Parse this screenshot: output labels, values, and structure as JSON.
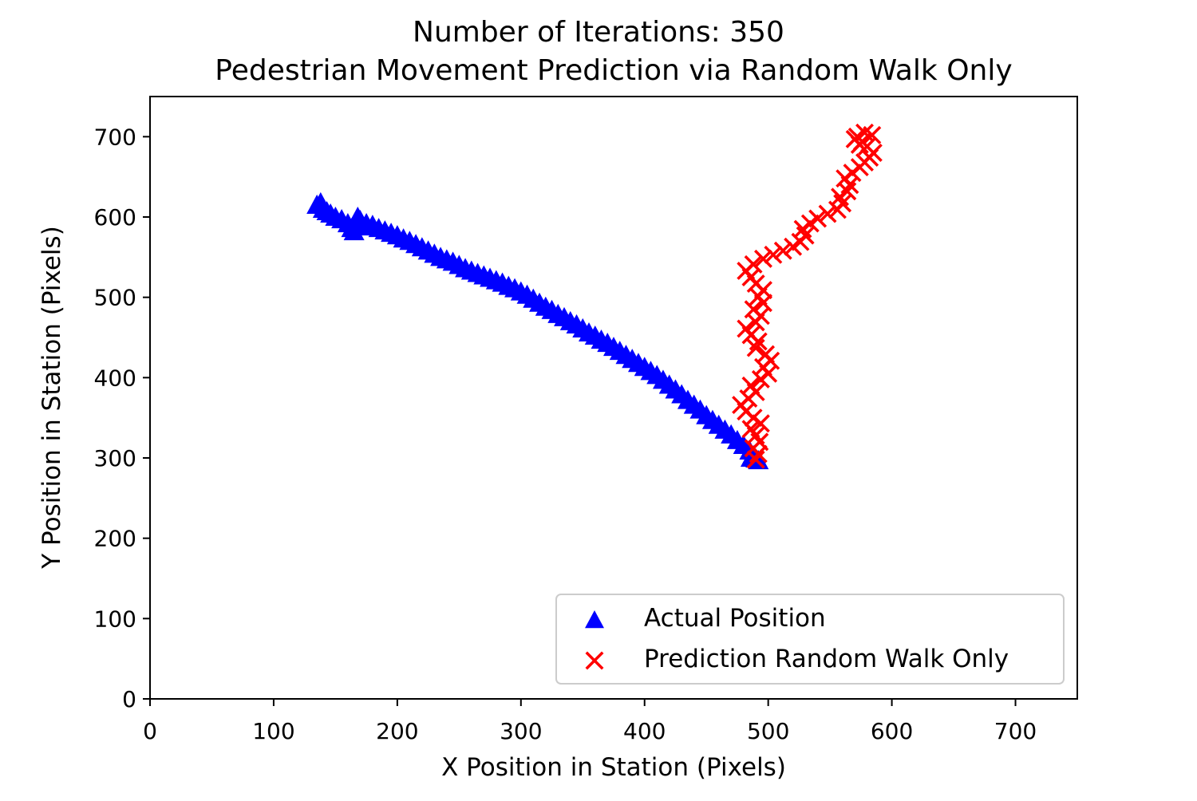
{
  "chart_data": {
    "type": "scatter",
    "title": "Number of Iterations: 350",
    "subtitle": "Pedestrian Movement Prediction via Random Walk Only",
    "xlabel": "X Position in Station (Pixels)",
    "ylabel": "Y Position in Station (Pixels)",
    "xlim": [
      0,
      750
    ],
    "ylim": [
      0,
      750
    ],
    "xticks": [
      0,
      100,
      200,
      300,
      400,
      500,
      600,
      700
    ],
    "yticks": [
      0,
      100,
      200,
      300,
      400,
      500,
      600,
      700
    ],
    "grid": false,
    "legend_position": "bottom-right",
    "series": [
      {
        "name": "Actual Position",
        "marker": "triangle",
        "color": "#0000ff",
        "points": [
          [
            135,
            615
          ],
          [
            138,
            618
          ],
          [
            140,
            610
          ],
          [
            143,
            607
          ],
          [
            146,
            604
          ],
          [
            150,
            600
          ],
          [
            155,
            597
          ],
          [
            160,
            592
          ],
          [
            163,
            586
          ],
          [
            165,
            582
          ],
          [
            168,
            600
          ],
          [
            170,
            596
          ],
          [
            172,
            588
          ],
          [
            175,
            592
          ],
          [
            180,
            590
          ],
          [
            185,
            586
          ],
          [
            190,
            583
          ],
          [
            195,
            580
          ],
          [
            200,
            577
          ],
          [
            205,
            573
          ],
          [
            210,
            570
          ],
          [
            215,
            566
          ],
          [
            220,
            562
          ],
          [
            225,
            558
          ],
          [
            230,
            554
          ],
          [
            235,
            550
          ],
          [
            240,
            547
          ],
          [
            245,
            544
          ],
          [
            250,
            540
          ],
          [
            255,
            536
          ],
          [
            260,
            533
          ],
          [
            265,
            530
          ],
          [
            270,
            527
          ],
          [
            275,
            524
          ],
          [
            280,
            521
          ],
          [
            285,
            518
          ],
          [
            290,
            514
          ],
          [
            295,
            511
          ],
          [
            300,
            507
          ],
          [
            305,
            503
          ],
          [
            310,
            498
          ],
          [
            315,
            493
          ],
          [
            320,
            488
          ],
          [
            325,
            484
          ],
          [
            330,
            479
          ],
          [
            335,
            475
          ],
          [
            340,
            470
          ],
          [
            345,
            466
          ],
          [
            350,
            461
          ],
          [
            355,
            456
          ],
          [
            360,
            452
          ],
          [
            365,
            447
          ],
          [
            370,
            443
          ],
          [
            375,
            438
          ],
          [
            380,
            433
          ],
          [
            385,
            428
          ],
          [
            390,
            423
          ],
          [
            395,
            418
          ],
          [
            400,
            413
          ],
          [
            405,
            408
          ],
          [
            410,
            403
          ],
          [
            415,
            397
          ],
          [
            420,
            391
          ],
          [
            425,
            385
          ],
          [
            430,
            379
          ],
          [
            435,
            372
          ],
          [
            440,
            366
          ],
          [
            445,
            360
          ],
          [
            450,
            353
          ],
          [
            455,
            347
          ],
          [
            460,
            341
          ],
          [
            465,
            335
          ],
          [
            470,
            329
          ],
          [
            475,
            322
          ],
          [
            480,
            316
          ],
          [
            485,
            309
          ],
          [
            488,
            303
          ],
          [
            490,
            299
          ],
          [
            492,
            297
          ],
          [
            486,
            300
          ]
        ]
      },
      {
        "name": "Prediction Random Walk Only",
        "marker": "x",
        "color": "#ff0000",
        "points": [
          [
            490,
            298
          ],
          [
            492,
            305
          ],
          [
            488,
            312
          ],
          [
            493,
            320
          ],
          [
            490,
            328
          ],
          [
            486,
            336
          ],
          [
            494,
            343
          ],
          [
            488,
            350
          ],
          [
            482,
            358
          ],
          [
            478,
            366
          ],
          [
            484,
            374
          ],
          [
            490,
            382
          ],
          [
            486,
            390
          ],
          [
            494,
            398
          ],
          [
            500,
            405
          ],
          [
            496,
            413
          ],
          [
            502,
            421
          ],
          [
            498,
            429
          ],
          [
            490,
            437
          ],
          [
            492,
            445
          ],
          [
            486,
            453
          ],
          [
            482,
            461
          ],
          [
            490,
            469
          ],
          [
            494,
            477
          ],
          [
            488,
            485
          ],
          [
            496,
            493
          ],
          [
            492,
            501
          ],
          [
            496,
            509
          ],
          [
            490,
            517
          ],
          [
            486,
            525
          ],
          [
            482,
            533
          ],
          [
            488,
            541
          ],
          [
            496,
            548
          ],
          [
            504,
            553
          ],
          [
            512,
            558
          ],
          [
            520,
            563
          ],
          [
            526,
            569
          ],
          [
            530,
            577
          ],
          [
            528,
            585
          ],
          [
            534,
            592
          ],
          [
            540,
            598
          ],
          [
            548,
            604
          ],
          [
            556,
            609
          ],
          [
            560,
            617
          ],
          [
            558,
            625
          ],
          [
            564,
            632
          ],
          [
            566,
            640
          ],
          [
            562,
            648
          ],
          [
            568,
            655
          ],
          [
            574,
            662
          ],
          [
            578,
            668
          ],
          [
            582,
            674
          ],
          [
            585,
            680
          ],
          [
            580,
            688
          ],
          [
            576,
            694
          ],
          [
            572,
            700
          ],
          [
            578,
            705
          ],
          [
            584,
            702
          ],
          [
            574,
            690
          ],
          [
            570,
            697
          ]
        ]
      }
    ]
  }
}
